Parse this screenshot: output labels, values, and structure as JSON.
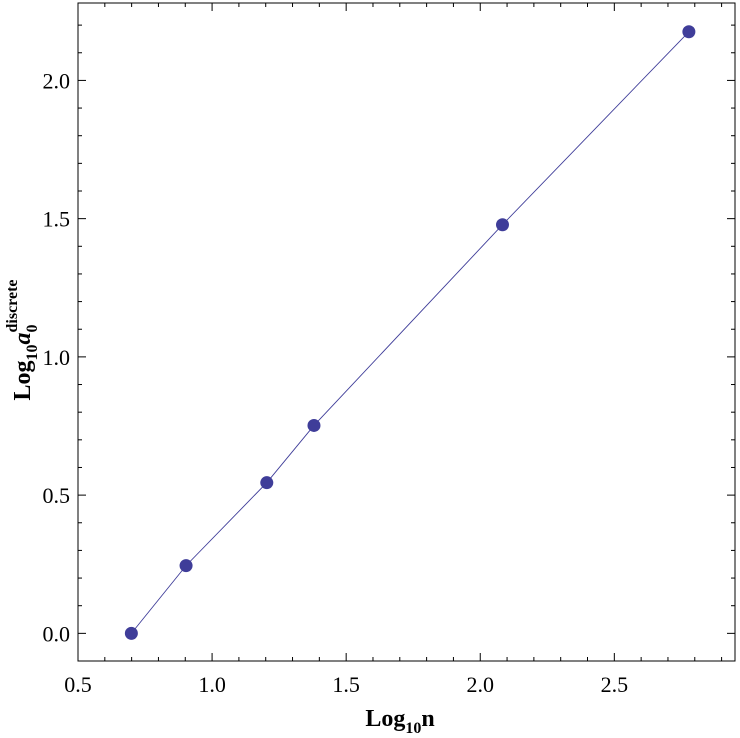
{
  "chart_data": {
    "type": "line",
    "title": "",
    "xlabel": {
      "base": "Log",
      "sub": "10",
      "var": "n"
    },
    "ylabel": {
      "base": "Log",
      "sub": "10",
      "var": "a",
      "var_sub": "0",
      "var_sup": "discrete"
    },
    "xlim": [
      0.5,
      2.95
    ],
    "ylim": [
      -0.1,
      2.28
    ],
    "x_ticks": [
      0.5,
      1.0,
      1.5,
      2.0,
      2.5
    ],
    "x_tick_labels": [
      "0.5",
      "1.0",
      "1.5",
      "2.0",
      "2.5"
    ],
    "y_ticks": [
      0.0,
      0.5,
      1.0,
      1.5,
      2.0
    ],
    "y_tick_labels": [
      "0.0",
      "0.5",
      "1.0",
      "1.5",
      "2.0"
    ],
    "grid": false,
    "legend": "none",
    "series": [
      {
        "x": [
          0.699,
          0.903,
          1.204,
          1.38,
          2.083,
          2.778
        ],
        "y": [
          0.0,
          0.245,
          0.545,
          0.752,
          1.478,
          2.176
        ],
        "color": "#3f3d99",
        "markers": true
      }
    ]
  }
}
